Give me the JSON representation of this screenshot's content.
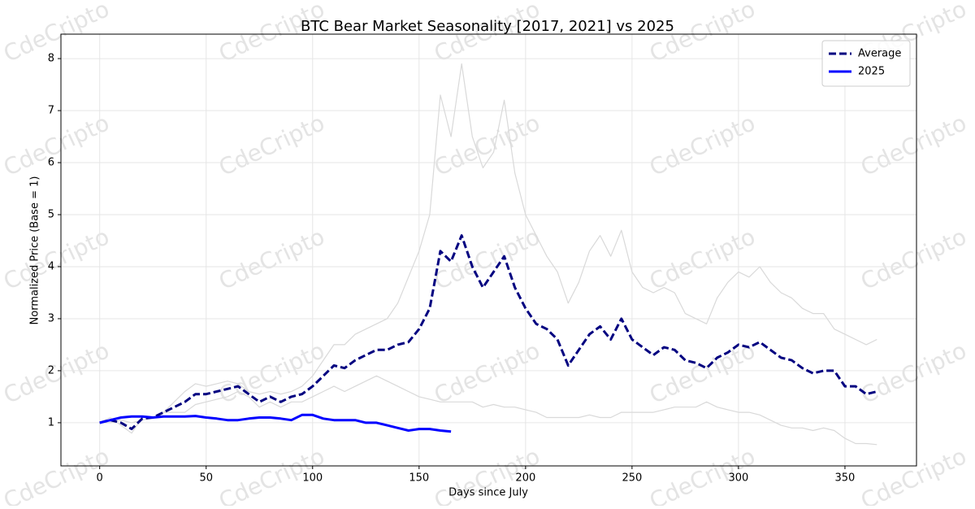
{
  "chart_data": {
    "type": "line",
    "title": "BTC Bear Market Seasonality [2017, 2021] vs 2025",
    "x_label": "Days since July",
    "y_label": "Normalized Price (Base = 1)",
    "watermark": "CdeCripto",
    "x": [
      0,
      5,
      10,
      15,
      20,
      25,
      30,
      35,
      40,
      45,
      50,
      55,
      60,
      65,
      70,
      75,
      80,
      85,
      90,
      95,
      100,
      105,
      110,
      115,
      120,
      125,
      130,
      135,
      140,
      145,
      150,
      155,
      160,
      165,
      170,
      175,
      180,
      185,
      190,
      195,
      200,
      205,
      210,
      215,
      220,
      225,
      230,
      235,
      240,
      245,
      250,
      255,
      260,
      265,
      270,
      275,
      280,
      285,
      290,
      295,
      300,
      305,
      310,
      315,
      320,
      325,
      330,
      335,
      340,
      345,
      350,
      355,
      360,
      365
    ],
    "series": [
      {
        "color": "#d9d9d9",
        "values": [
          1.0,
          1.0,
          1.05,
          1.0,
          1.05,
          1.1,
          1.2,
          1.4,
          1.6,
          1.75,
          1.7,
          1.75,
          1.8,
          1.75,
          1.6,
          1.55,
          1.6,
          1.55,
          1.6,
          1.7,
          1.9,
          2.2,
          2.5,
          2.5,
          2.7,
          2.8,
          2.9,
          3.0,
          3.3,
          3.8,
          4.3,
          5.0,
          7.3,
          6.5,
          7.9,
          6.5,
          5.9,
          6.2,
          7.2,
          5.8,
          5.0,
          4.6,
          4.2,
          3.9,
          3.3,
          3.7,
          4.3,
          4.6,
          4.2,
          4.7,
          3.9,
          3.6,
          3.5,
          3.6,
          3.5,
          3.1,
          3.0,
          2.9,
          3.4,
          3.7,
          3.9,
          3.8,
          4.0,
          3.7,
          3.5,
          3.4,
          3.2,
          3.1,
          3.1,
          2.8,
          2.7,
          2.6,
          2.5,
          2.6
        ]
      },
      {
        "color": "#d9d9d9",
        "values": [
          1.0,
          1.1,
          0.95,
          0.8,
          1.1,
          1.1,
          1.2,
          1.2,
          1.2,
          1.35,
          1.4,
          1.45,
          1.5,
          1.6,
          1.5,
          1.3,
          1.4,
          1.3,
          1.4,
          1.4,
          1.5,
          1.6,
          1.7,
          1.6,
          1.7,
          1.8,
          1.9,
          1.8,
          1.7,
          1.6,
          1.5,
          1.45,
          1.4,
          1.4,
          1.4,
          1.4,
          1.3,
          1.35,
          1.3,
          1.3,
          1.25,
          1.2,
          1.1,
          1.1,
          1.1,
          1.1,
          1.15,
          1.1,
          1.1,
          1.2,
          1.2,
          1.2,
          1.2,
          1.25,
          1.3,
          1.3,
          1.3,
          1.4,
          1.3,
          1.25,
          1.2,
          1.2,
          1.15,
          1.05,
          0.95,
          0.9,
          0.9,
          0.85,
          0.9,
          0.85,
          0.7,
          0.6,
          0.6,
          0.58
        ]
      },
      {
        "name": "Average",
        "color": "#000080",
        "dashed": true,
        "values": [
          1.0,
          1.05,
          1.0,
          0.88,
          1.08,
          1.1,
          1.2,
          1.3,
          1.4,
          1.55,
          1.55,
          1.6,
          1.65,
          1.7,
          1.55,
          1.4,
          1.5,
          1.4,
          1.5,
          1.55,
          1.7,
          1.9,
          2.1,
          2.05,
          2.2,
          2.3,
          2.4,
          2.4,
          2.5,
          2.55,
          2.8,
          3.2,
          4.3,
          4.1,
          4.6,
          4.0,
          3.6,
          3.9,
          4.2,
          3.6,
          3.2,
          2.9,
          2.8,
          2.6,
          2.1,
          2.4,
          2.7,
          2.85,
          2.6,
          3.0,
          2.6,
          2.45,
          2.3,
          2.45,
          2.4,
          2.2,
          2.15,
          2.05,
          2.25,
          2.35,
          2.5,
          2.45,
          2.55,
          2.4,
          2.25,
          2.2,
          2.05,
          1.95,
          2.0,
          2.0,
          1.7,
          1.7,
          1.55,
          1.6
        ]
      },
      {
        "name": "2025",
        "color": "#0000ff",
        "values": [
          1.0,
          1.05,
          1.1,
          1.12,
          1.12,
          1.1,
          1.12,
          1.12,
          1.12,
          1.13,
          1.1,
          1.08,
          1.05,
          1.05,
          1.08,
          1.1,
          1.1,
          1.08,
          1.05,
          1.15,
          1.15,
          1.08,
          1.05,
          1.05,
          1.05,
          1.0,
          1.0,
          0.95,
          0.9,
          0.85,
          0.88,
          0.88,
          0.85,
          0.83,
          null,
          null,
          null,
          null,
          null,
          null,
          null,
          null,
          null,
          null,
          null,
          null,
          null,
          null,
          null,
          null,
          null,
          null,
          null,
          null,
          null,
          null,
          null,
          null,
          null,
          null,
          null,
          null,
          null,
          null,
          null,
          null,
          null,
          null,
          null,
          null,
          null,
          null,
          null,
          null
        ]
      }
    ],
    "xlim": [
      -18.2,
      383.6
    ],
    "xticks": [
      0,
      50,
      100,
      150,
      200,
      250,
      300,
      350
    ],
    "ylim": [
      0.17,
      8.47
    ],
    "yticks": [
      1,
      2,
      3,
      4,
      5,
      6,
      7,
      8
    ],
    "grid": true,
    "legend": "upper right"
  }
}
